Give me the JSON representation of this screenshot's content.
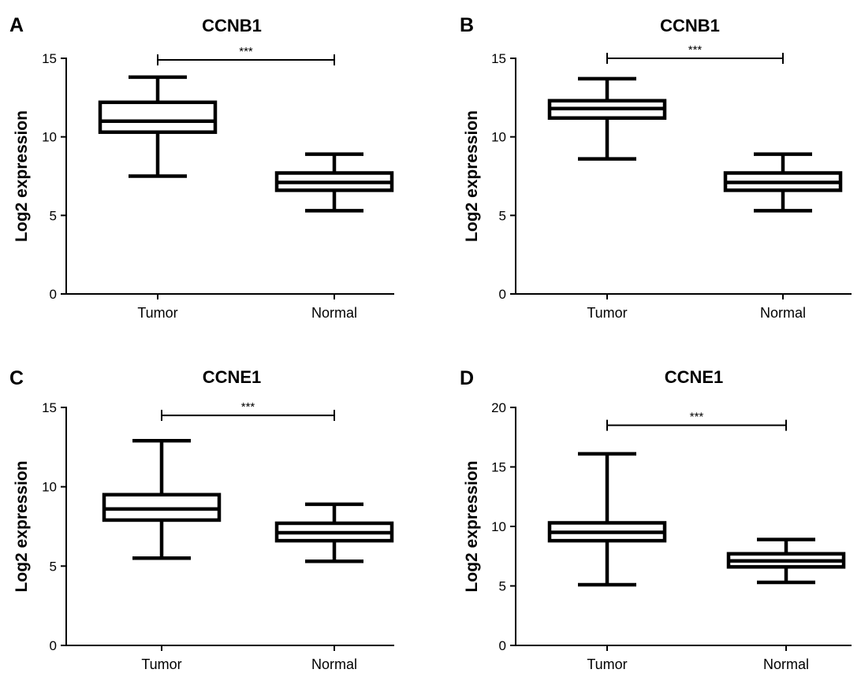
{
  "chart_data": [
    {
      "type": "box",
      "panel": "A",
      "title": "CCNB1",
      "ylabel": "Log2 expression",
      "xlabel": "",
      "ylim": [
        0,
        15
      ],
      "yticks": [
        0,
        5,
        10,
        15
      ],
      "grid": false,
      "categories": [
        "Tumor",
        "Normal"
      ],
      "boxes": [
        {
          "category": "Tumor",
          "min": 7.5,
          "q1": 10.3,
          "median": 11.0,
          "q3": 12.2,
          "max": 13.8
        },
        {
          "category": "Normal",
          "min": 5.3,
          "q1": 6.6,
          "median": 7.1,
          "q3": 7.7,
          "max": 8.9
        }
      ],
      "significance": {
        "from": "Tumor",
        "to": "Normal",
        "y": 14.9,
        "label": "***"
      }
    },
    {
      "type": "box",
      "panel": "B",
      "title": "CCNB1",
      "ylabel": "Log2 expression",
      "xlabel": "",
      "ylim": [
        0,
        15
      ],
      "yticks": [
        0,
        5,
        10,
        15
      ],
      "grid": false,
      "categories": [
        "Tumor",
        "Normal"
      ],
      "boxes": [
        {
          "category": "Tumor",
          "min": 8.6,
          "q1": 11.2,
          "median": 11.8,
          "q3": 12.3,
          "max": 13.7
        },
        {
          "category": "Normal",
          "min": 5.3,
          "q1": 6.6,
          "median": 7.1,
          "q3": 7.7,
          "max": 8.9
        }
      ],
      "significance": {
        "from": "Tumor",
        "to": "Normal",
        "y": 15.0,
        "label": "***"
      }
    },
    {
      "type": "box",
      "panel": "C",
      "title": "CCNE1",
      "ylabel": "Log2 expression",
      "xlabel": "",
      "ylim": [
        0,
        15
      ],
      "yticks": [
        0,
        5,
        10,
        15
      ],
      "grid": false,
      "categories": [
        "Tumor",
        "Normal"
      ],
      "boxes": [
        {
          "category": "Tumor",
          "min": 5.5,
          "q1": 7.9,
          "median": 8.6,
          "q3": 9.5,
          "max": 12.9
        },
        {
          "category": "Normal",
          "min": 5.3,
          "q1": 6.6,
          "median": 7.1,
          "q3": 7.7,
          "max": 8.9
        }
      ],
      "significance": {
        "from": "Tumor",
        "to": "Normal",
        "y": 14.5,
        "label": "***"
      }
    },
    {
      "type": "box",
      "panel": "D",
      "title": "CCNE1",
      "ylabel": "Log2 expression",
      "xlabel": "",
      "ylim": [
        0,
        20
      ],
      "yticks": [
        0,
        5,
        10,
        15,
        20
      ],
      "grid": false,
      "categories": [
        "Tumor",
        "Normal"
      ],
      "boxes": [
        {
          "category": "Tumor",
          "min": 5.1,
          "q1": 8.8,
          "median": 9.5,
          "q3": 10.3,
          "max": 16.1
        },
        {
          "category": "Normal",
          "min": 5.3,
          "q1": 6.6,
          "median": 7.1,
          "q3": 7.7,
          "max": 8.9
        }
      ],
      "significance": {
        "from": "Tumor",
        "to": "Normal",
        "y": 18.5,
        "label": "***"
      }
    }
  ]
}
